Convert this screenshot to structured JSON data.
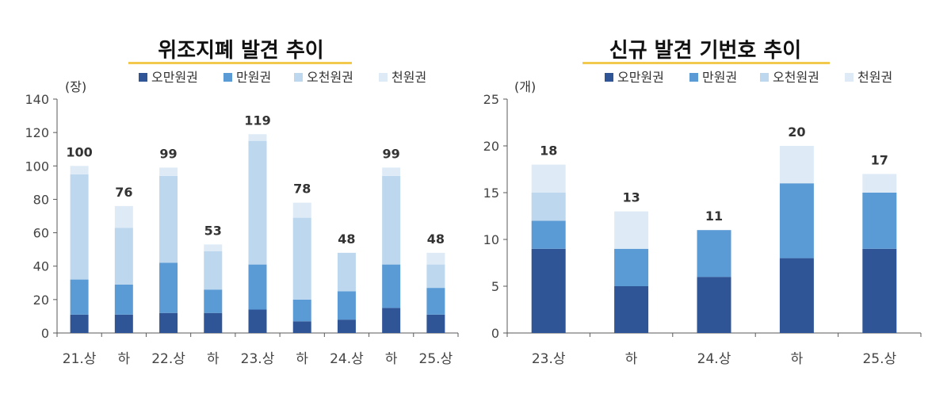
{
  "colors": {
    "five_man": "#2f5597",
    "man": "#5b9bd5",
    "five_cheon": "#bdd7ee",
    "cheon": "#deebf7",
    "axis": "#595959",
    "underline": "#f2c94c"
  },
  "chart_data": [
    {
      "type": "bar",
      "stacked": true,
      "title": "위조지폐 발견 추이",
      "unit": "(장)",
      "legend_position": "top",
      "grid": false,
      "categories": [
        "21.상",
        "하",
        "22.상",
        "하",
        "23.상",
        "하",
        "24.상",
        "하",
        "25.상"
      ],
      "ylim": [
        0,
        140
      ],
      "yticks": [
        0,
        20,
        40,
        60,
        80,
        100,
        120,
        140
      ],
      "series": [
        {
          "name": "오만원권",
          "values": [
            11,
            11,
            12,
            12,
            14,
            7,
            8,
            15,
            11
          ]
        },
        {
          "name": "만원권",
          "values": [
            21,
            18,
            30,
            14,
            27,
            13,
            17,
            26,
            16
          ]
        },
        {
          "name": "오천원권",
          "values": [
            63,
            34,
            52,
            23,
            74,
            49,
            23,
            53,
            14
          ]
        },
        {
          "name": "천원권",
          "values": [
            5,
            13,
            5,
            4,
            4,
            9,
            0,
            5,
            7
          ]
        }
      ],
      "totals": [
        100,
        76,
        99,
        53,
        119,
        78,
        48,
        99,
        48
      ]
    },
    {
      "type": "bar",
      "stacked": true,
      "title": "신규 발견 기번호 추이",
      "unit": "(개)",
      "legend_position": "top",
      "grid": false,
      "categories": [
        "23.상",
        "하",
        "24.상",
        "하",
        "25.상"
      ],
      "ylim": [
        0,
        25
      ],
      "yticks": [
        0,
        5,
        10,
        15,
        20,
        25
      ],
      "series": [
        {
          "name": "오만원권",
          "values": [
            9,
            5,
            6,
            8,
            9
          ]
        },
        {
          "name": "만원권",
          "values": [
            3,
            4,
            5,
            8,
            6
          ]
        },
        {
          "name": "오천원권",
          "values": [
            3,
            0,
            0,
            0,
            0
          ]
        },
        {
          "name": "천원권",
          "values": [
            3,
            4,
            0,
            4,
            2
          ]
        }
      ],
      "totals": [
        18,
        13,
        11,
        20,
        17
      ]
    }
  ]
}
